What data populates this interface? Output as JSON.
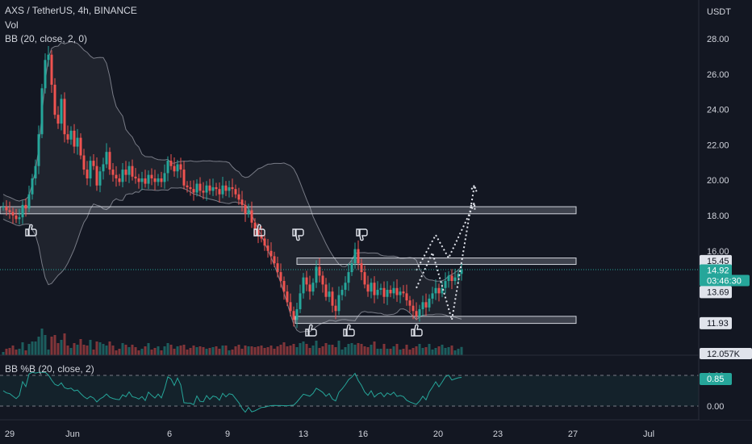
{
  "header": {
    "symbol_line": "AXS / TetherUS, 4h, BINANCE",
    "volume_label": "Vol",
    "bb_label": "BB (20, close, 2, 0)",
    "pctb_label": "BB %B (20, close, 2)"
  },
  "colors": {
    "background": "#131722",
    "up": "#26a69a",
    "down": "#ef5350",
    "band": "#787b86",
    "pctb_line": "#26a69a",
    "current_price_tag": "#26a69a",
    "grid": "#1e222d"
  },
  "price_axis": {
    "unit": "USDT",
    "ticks": [
      "28.00",
      "26.00",
      "24.00",
      "22.00",
      "20.00",
      "18.00",
      "16.00"
    ],
    "tags": [
      {
        "id": "tag-resistance",
        "value": "15.45",
        "y": 15.45,
        "bg": "#e0e3eb",
        "fg": "#131722"
      },
      {
        "id": "tag-current",
        "value": "14.92",
        "sub": "03:46:30",
        "y": 14.92,
        "bg": "#26a69a",
        "fg": "#ffffff"
      },
      {
        "id": "tag-mid",
        "value": "13.69",
        "y": 13.69,
        "bg": "#e0e3eb",
        "fg": "#131722"
      },
      {
        "id": "tag-support",
        "value": "11.93",
        "y": 11.93,
        "bg": "#e0e3eb",
        "fg": "#131722"
      }
    ],
    "volume_tag": "12.057K",
    "pctb_ticks": [
      "1.00",
      "0.00"
    ],
    "pctb_tag": "0.85"
  },
  "time_axis": {
    "labels": [
      "29",
      "Jun",
      "6",
      "9",
      "13",
      "16",
      "20",
      "23",
      "27",
      "Jul"
    ]
  },
  "chart_data": {
    "type": "candlestick",
    "title": "AXS / TetherUS, 4h, BINANCE",
    "ylabel": "USDT",
    "ylim": [
      10.6,
      29.6
    ],
    "grid": false,
    "date_labels": [
      "29",
      "Jun",
      "6",
      "9",
      "13",
      "16",
      "20",
      "23",
      "27",
      "Jul"
    ],
    "price_series_close": [
      18.5,
      18.3,
      18.2,
      18.0,
      17.8,
      17.9,
      18.6,
      18.4,
      19.2,
      20.1,
      20.8,
      22.6,
      25.2,
      26.8,
      27.1,
      25.4,
      23.7,
      23.2,
      24.6,
      22.6,
      22.3,
      22.8,
      21.9,
      22.4,
      21.4,
      20.6,
      20.1,
      21.1,
      20.8,
      19.7,
      20.5,
      20.9,
      21.6,
      20.6,
      20.3,
      20.1,
      19.9,
      20.6,
      20.3,
      20.8,
      20.2,
      20.1,
      19.9,
      20.1,
      19.8,
      20.3,
      20.1,
      19.9,
      20.1,
      19.9,
      20.4,
      21.1,
      20.8,
      20.5,
      20.9,
      20.6,
      19.7,
      19.6,
      19.5,
      19.3,
      19.8,
      19.4,
      19.3,
      19.7,
      19.4,
      19.6,
      19.5,
      19.2,
      19.7,
      19.4,
      19.6,
      19.5,
      19.2,
      18.9,
      18.6,
      18.1,
      18.3,
      17.6,
      17.2,
      16.9,
      16.7,
      16.3,
      16.0,
      15.7,
      15.3,
      14.8,
      14.3,
      13.7,
      13.1,
      12.6,
      12.1,
      12.7,
      13.6,
      14.5,
      14.1,
      13.7,
      14.2,
      15.1,
      14.6,
      14.1,
      13.4,
      13.7,
      12.9,
      12.6,
      13.5,
      13.8,
      14.2,
      14.8,
      15.3,
      16.1,
      15.3,
      14.8,
      14.1,
      13.7,
      14.2,
      13.5,
      13.8,
      13.9,
      13.4,
      13.8,
      13.6,
      13.9,
      13.5,
      13.7,
      13.6,
      13.2,
      12.9,
      12.6,
      12.3,
      12.7,
      13.1,
      12.8,
      13.3,
      13.6,
      13.9,
      13.6,
      13.9,
      14.3,
      14.6,
      14.3,
      14.5,
      14.7,
      14.92
    ],
    "projections": [
      {
        "name": "",
        "points": [
          [
            128,
            13.9
          ],
          [
            133,
            15.9
          ],
          [
            139,
            12.1
          ],
          [
            146,
            19.7
          ]
        ]
      },
      {
        "name": "",
        "points": [
          [
            128,
            14.9
          ],
          [
            134,
            16.9
          ],
          [
            138,
            15.6
          ],
          [
            146,
            18.7
          ]
        ]
      }
    ],
    "zones": [
      {
        "label": "",
        "low": 18.1,
        "high": 18.5
      },
      {
        "label": "",
        "low": 15.3,
        "high": 15.6
      },
      {
        "label": "",
        "low": 11.9,
        "high": 12.3
      }
    ],
    "pctb_range": [
      -0.2,
      1.1
    ]
  }
}
